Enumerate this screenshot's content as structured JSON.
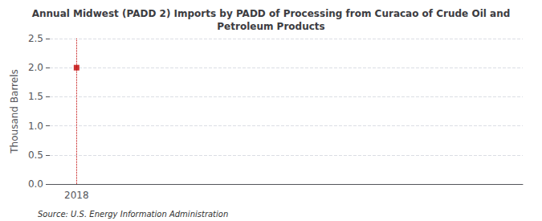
{
  "chart_data": {
    "type": "scatter",
    "title": "Annual Midwest (PADD 2) Imports by PADD of Processing from Curacao of Crude Oil and\nPetroleum Products",
    "ylabel": "Thousand Barrels",
    "annotations": [
      "Source: U.S. Energy Information Administration"
    ],
    "x": [
      2018
    ],
    "values": [
      2.0
    ],
    "color": "#c00000",
    "marker": "square",
    "vlines": [
      2018
    ],
    "xlim": [
      2017.7,
      2023.0
    ],
    "xticks": [
      2018
    ],
    "ylim": [
      0.0,
      2.5
    ],
    "yticks": [
      {
        "value": 0.0,
        "label": "0.0"
      },
      0.5,
      {
        "value": 1.0,
        "label": "1.0"
      },
      1.5,
      {
        "value": 2.0,
        "label": "2.0"
      },
      2.5
    ],
    "grid": true
  }
}
